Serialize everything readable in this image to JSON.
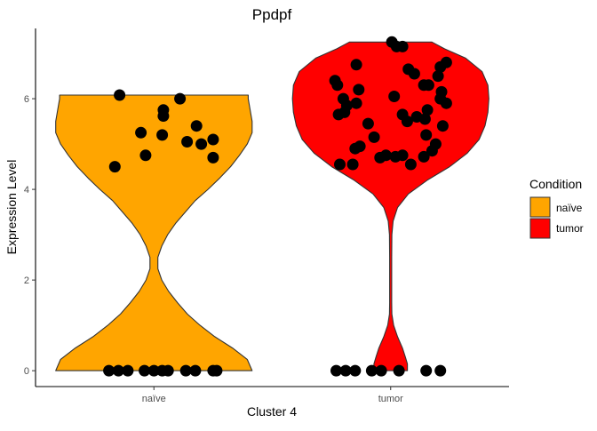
{
  "chart_data": {
    "type": "violin",
    "title": "Ppdpf",
    "xlabel": "Cluster 4",
    "ylabel": "Expression Level",
    "categories": [
      "naïve",
      "tumor"
    ],
    "ylim": [
      -0.35,
      7.55
    ],
    "yticks": [
      0,
      2,
      4,
      6
    ],
    "grid": false,
    "legend": {
      "title": "Condition",
      "placement": "right",
      "entries": [
        {
          "label": "naïve",
          "color": "#FFA500"
        },
        {
          "label": "tumor",
          "color": "#FF0000"
        }
      ]
    },
    "colors": {
      "naive": "#FFA500",
      "tumor": "#FF0000",
      "outline": "#333333",
      "points": "#000000",
      "axis": "#000000"
    },
    "series": [
      {
        "name": "naïve",
        "category": "naïve",
        "violin": {
          "y": [
            0.0,
            0.25,
            0.5,
            0.75,
            1.0,
            1.25,
            1.5,
            1.75,
            2.0,
            2.25,
            2.5,
            2.75,
            3.0,
            3.25,
            3.5,
            3.75,
            4.0,
            4.25,
            4.5,
            4.75,
            5.0,
            5.25,
            5.5,
            5.75,
            6.0,
            6.08
          ],
          "density": [
            1.0,
            0.95,
            0.8,
            0.62,
            0.47,
            0.34,
            0.24,
            0.15,
            0.08,
            0.04,
            0.04,
            0.08,
            0.14,
            0.22,
            0.32,
            0.42,
            0.55,
            0.67,
            0.78,
            0.87,
            0.95,
            1.0,
            1.0,
            0.98,
            0.96,
            0.96
          ]
        },
        "points": [
          {
            "x": -0.38,
            "y": 0.0
          },
          {
            "x": -0.3,
            "y": 0.0
          },
          {
            "x": -0.22,
            "y": 0.0
          },
          {
            "x": -0.08,
            "y": 0.0
          },
          {
            "x": 0.0,
            "y": 0.0
          },
          {
            "x": 0.07,
            "y": 0.0
          },
          {
            "x": 0.12,
            "y": 0.0
          },
          {
            "x": 0.27,
            "y": 0.0
          },
          {
            "x": 0.35,
            "y": 0.0
          },
          {
            "x": 0.5,
            "y": 0.0
          },
          {
            "x": 0.53,
            "y": 0.0
          },
          {
            "x": -0.29,
            "y": 6.08
          },
          {
            "x": 0.22,
            "y": 6.0
          },
          {
            "x": 0.08,
            "y": 5.75
          },
          {
            "x": 0.08,
            "y": 5.62
          },
          {
            "x": 0.36,
            "y": 5.4
          },
          {
            "x": -0.11,
            "y": 5.25
          },
          {
            "x": 0.07,
            "y": 5.2
          },
          {
            "x": 0.28,
            "y": 5.05
          },
          {
            "x": 0.4,
            "y": 5.0
          },
          {
            "x": 0.5,
            "y": 5.1
          },
          {
            "x": -0.07,
            "y": 4.75
          },
          {
            "x": 0.5,
            "y": 4.7
          },
          {
            "x": -0.33,
            "y": 4.5
          }
        ]
      },
      {
        "name": "tumor",
        "category": "tumor",
        "violin": {
          "y": [
            0.0,
            0.15,
            0.3,
            0.5,
            0.75,
            1.0,
            1.25,
            1.5,
            2.0,
            2.5,
            3.0,
            3.3,
            3.6,
            3.9,
            4.2,
            4.5,
            4.8,
            5.1,
            5.4,
            5.7,
            6.0,
            6.3,
            6.6,
            6.9,
            7.1,
            7.25
          ],
          "density": [
            0.17,
            0.17,
            0.15,
            0.12,
            0.07,
            0.03,
            0.012,
            0.01,
            0.01,
            0.01,
            0.012,
            0.025,
            0.07,
            0.18,
            0.37,
            0.6,
            0.78,
            0.9,
            0.96,
            0.99,
            1.0,
            0.99,
            0.93,
            0.76,
            0.55,
            0.42
          ]
        },
        "points": [
          {
            "x": -0.46,
            "y": 0.0
          },
          {
            "x": -0.38,
            "y": 0.0
          },
          {
            "x": -0.3,
            "y": 0.0
          },
          {
            "x": -0.16,
            "y": 0.0
          },
          {
            "x": -0.08,
            "y": 0.0
          },
          {
            "x": 0.07,
            "y": 0.0
          },
          {
            "x": 0.3,
            "y": 0.0
          },
          {
            "x": 0.42,
            "y": 0.0
          },
          {
            "x": 0.01,
            "y": 7.25
          },
          {
            "x": 0.05,
            "y": 7.15
          },
          {
            "x": 0.1,
            "y": 7.15
          },
          {
            "x": 0.47,
            "y": 6.8
          },
          {
            "x": 0.42,
            "y": 6.7
          },
          {
            "x": -0.29,
            "y": 6.75
          },
          {
            "x": 0.15,
            "y": 6.65
          },
          {
            "x": 0.2,
            "y": 6.55
          },
          {
            "x": 0.4,
            "y": 6.5
          },
          {
            "x": -0.47,
            "y": 6.4
          },
          {
            "x": -0.45,
            "y": 6.3
          },
          {
            "x": 0.32,
            "y": 6.3
          },
          {
            "x": 0.28,
            "y": 6.3
          },
          {
            "x": 0.43,
            "y": 6.15
          },
          {
            "x": -0.27,
            "y": 6.2
          },
          {
            "x": 0.42,
            "y": 6.0
          },
          {
            "x": 0.03,
            "y": 6.05
          },
          {
            "x": -0.4,
            "y": 6.0
          },
          {
            "x": -0.37,
            "y": 5.85
          },
          {
            "x": -0.29,
            "y": 5.9
          },
          {
            "x": 0.47,
            "y": 5.9
          },
          {
            "x": 0.31,
            "y": 5.75
          },
          {
            "x": -0.44,
            "y": 5.65
          },
          {
            "x": -0.39,
            "y": 5.7
          },
          {
            "x": 0.1,
            "y": 5.65
          },
          {
            "x": 0.29,
            "y": 5.55
          },
          {
            "x": 0.22,
            "y": 5.6
          },
          {
            "x": 0.14,
            "y": 5.5
          },
          {
            "x": -0.19,
            "y": 5.45
          },
          {
            "x": 0.44,
            "y": 5.4
          },
          {
            "x": -0.14,
            "y": 5.15
          },
          {
            "x": 0.3,
            "y": 5.2
          },
          {
            "x": 0.38,
            "y": 5.0
          },
          {
            "x": -0.26,
            "y": 4.95
          },
          {
            "x": -0.3,
            "y": 4.9
          },
          {
            "x": 0.35,
            "y": 4.85
          },
          {
            "x": -0.04,
            "y": 4.75
          },
          {
            "x": 0.1,
            "y": 4.75
          },
          {
            "x": 0.04,
            "y": 4.72
          },
          {
            "x": 0.28,
            "y": 4.72
          },
          {
            "x": -0.09,
            "y": 4.7
          },
          {
            "x": -0.32,
            "y": 4.55
          },
          {
            "x": -0.43,
            "y": 4.55
          },
          {
            "x": 0.17,
            "y": 4.55
          }
        ]
      }
    ]
  }
}
